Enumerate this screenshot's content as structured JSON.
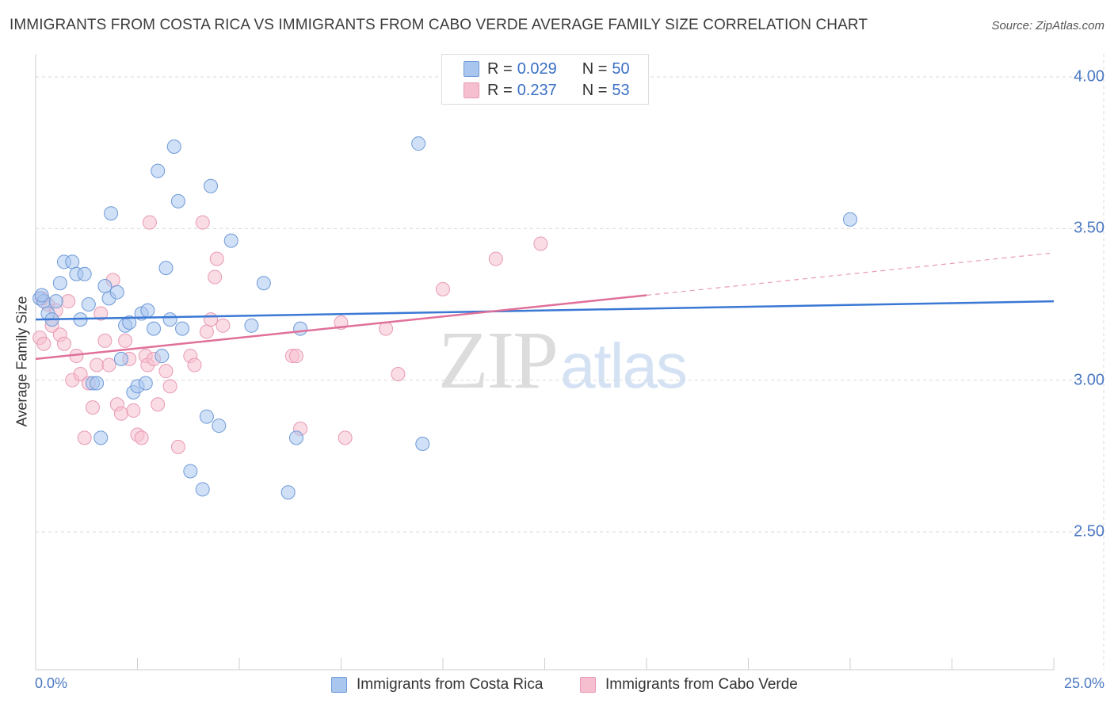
{
  "header": {
    "title": "IMMIGRANTS FROM COSTA RICA VS IMMIGRANTS FROM CABO VERDE AVERAGE FAMILY SIZE CORRELATION CHART",
    "source": "Source: ZipAtlas.com"
  },
  "watermark": {
    "zip": "ZIP",
    "atlas": "atlas"
  },
  "colors": {
    "blue_fill": "#a9c6ef",
    "blue_stroke": "#6e9ad8",
    "blue_line": "#3a78d4",
    "pink_fill": "#f6bfd0",
    "pink_stroke": "#e89ab3",
    "pink_line": "#e0709a",
    "grid": "#d9d9d9",
    "tick_text": "#4a78c2"
  },
  "legend": {
    "rows": [
      {
        "r_label": "R =",
        "r_value": "0.029",
        "n_label": "N =",
        "n_value": "50"
      },
      {
        "r_label": "R =",
        "r_value": "0.237",
        "n_label": "N =",
        "n_value": "53"
      }
    ]
  },
  "chart_data": {
    "type": "scatter",
    "title": "IMMIGRANTS FROM COSTA RICA VS IMMIGRANTS FROM CABO VERDE AVERAGE FAMILY SIZE CORRELATION CHART",
    "xlabel": "",
    "ylabel": "Average Family Size",
    "xlim": [
      0,
      25
    ],
    "ylim": [
      2.0,
      4.05
    ],
    "x_tick_labels": [
      "0.0%",
      "25.0%"
    ],
    "y_ticks": [
      2.5,
      3.0,
      3.5,
      4.0
    ],
    "y_tick_labels": [
      "2.50",
      "3.00",
      "3.50",
      "4.00"
    ],
    "grid": true,
    "legend_position": "top-center",
    "series": [
      {
        "name": "Immigrants from Costa Rica",
        "color": "blue",
        "R": 0.029,
        "N": 50,
        "trend": {
          "x": [
            0,
            25
          ],
          "y": [
            3.2,
            3.26
          ]
        },
        "points": [
          [
            0.1,
            3.27
          ],
          [
            0.2,
            3.26
          ],
          [
            0.3,
            3.22
          ],
          [
            0.4,
            3.2
          ],
          [
            0.5,
            3.26
          ],
          [
            0.6,
            3.32
          ],
          [
            0.7,
            3.39
          ],
          [
            0.9,
            3.39
          ],
          [
            1.0,
            3.35
          ],
          [
            1.1,
            3.2
          ],
          [
            1.2,
            3.35
          ],
          [
            1.3,
            3.25
          ],
          [
            1.4,
            2.99
          ],
          [
            1.5,
            2.99
          ],
          [
            1.6,
            2.81
          ],
          [
            1.7,
            3.31
          ],
          [
            1.8,
            3.27
          ],
          [
            1.85,
            3.55
          ],
          [
            2.0,
            3.29
          ],
          [
            2.1,
            3.07
          ],
          [
            2.2,
            3.18
          ],
          [
            2.3,
            3.19
          ],
          [
            2.4,
            2.96
          ],
          [
            2.5,
            2.98
          ],
          [
            2.6,
            3.22
          ],
          [
            2.7,
            2.99
          ],
          [
            2.75,
            3.23
          ],
          [
            2.9,
            3.17
          ],
          [
            3.0,
            3.69
          ],
          [
            3.1,
            3.08
          ],
          [
            3.2,
            3.37
          ],
          [
            3.3,
            3.2
          ],
          [
            3.4,
            3.77
          ],
          [
            3.5,
            3.59
          ],
          [
            3.6,
            3.17
          ],
          [
            3.8,
            2.7
          ],
          [
            4.1,
            2.64
          ],
          [
            4.2,
            2.88
          ],
          [
            4.3,
            3.64
          ],
          [
            4.5,
            2.85
          ],
          [
            4.8,
            3.46
          ],
          [
            5.3,
            3.18
          ],
          [
            5.6,
            3.32
          ],
          [
            6.2,
            2.63
          ],
          [
            6.4,
            2.81
          ],
          [
            6.5,
            3.17
          ],
          [
            9.4,
            3.78
          ],
          [
            9.5,
            2.79
          ],
          [
            20.0,
            3.53
          ],
          [
            0.15,
            3.28
          ]
        ]
      },
      {
        "name": "Immigrants from Cabo Verde",
        "color": "pink",
        "R": 0.237,
        "N": 53,
        "trend": {
          "x": [
            0,
            15
          ],
          "y": [
            3.07,
            3.28
          ]
        },
        "trend_extension": {
          "x": [
            15,
            25
          ],
          "y": [
            3.28,
            3.42
          ]
        },
        "points": [
          [
            0.1,
            3.14
          ],
          [
            0.2,
            3.12
          ],
          [
            0.3,
            3.25
          ],
          [
            0.4,
            3.18
          ],
          [
            0.5,
            3.23
          ],
          [
            0.6,
            3.15
          ],
          [
            0.7,
            3.12
          ],
          [
            0.8,
            3.26
          ],
          [
            0.9,
            3.0
          ],
          [
            1.0,
            3.08
          ],
          [
            1.1,
            3.02
          ],
          [
            1.2,
            2.81
          ],
          [
            1.3,
            2.99
          ],
          [
            1.4,
            2.91
          ],
          [
            1.5,
            3.05
          ],
          [
            1.6,
            3.22
          ],
          [
            1.7,
            3.13
          ],
          [
            1.8,
            3.05
          ],
          [
            1.9,
            3.33
          ],
          [
            2.0,
            2.92
          ],
          [
            2.1,
            2.89
          ],
          [
            2.2,
            3.13
          ],
          [
            2.3,
            3.07
          ],
          [
            2.4,
            2.9
          ],
          [
            2.5,
            2.82
          ],
          [
            2.6,
            2.81
          ],
          [
            2.7,
            3.08
          ],
          [
            2.75,
            3.05
          ],
          [
            2.8,
            3.52
          ],
          [
            2.9,
            3.07
          ],
          [
            3.0,
            2.92
          ],
          [
            3.2,
            3.03
          ],
          [
            3.3,
            2.98
          ],
          [
            3.5,
            2.78
          ],
          [
            3.8,
            3.08
          ],
          [
            3.9,
            3.05
          ],
          [
            4.1,
            3.52
          ],
          [
            4.2,
            3.16
          ],
          [
            4.3,
            3.2
          ],
          [
            4.4,
            3.34
          ],
          [
            4.45,
            3.4
          ],
          [
            4.6,
            3.18
          ],
          [
            6.3,
            3.08
          ],
          [
            6.4,
            3.08
          ],
          [
            6.5,
            2.84
          ],
          [
            7.5,
            3.19
          ],
          [
            7.6,
            2.81
          ],
          [
            8.6,
            3.17
          ],
          [
            8.9,
            3.02
          ],
          [
            10.0,
            3.3
          ],
          [
            11.3,
            3.4
          ],
          [
            12.4,
            3.45
          ],
          [
            0.15,
            3.27
          ]
        ]
      }
    ]
  },
  "bottom_legend": [
    {
      "label": "Immigrants from Costa Rica"
    },
    {
      "label": "Immigrants from Cabo Verde"
    }
  ]
}
